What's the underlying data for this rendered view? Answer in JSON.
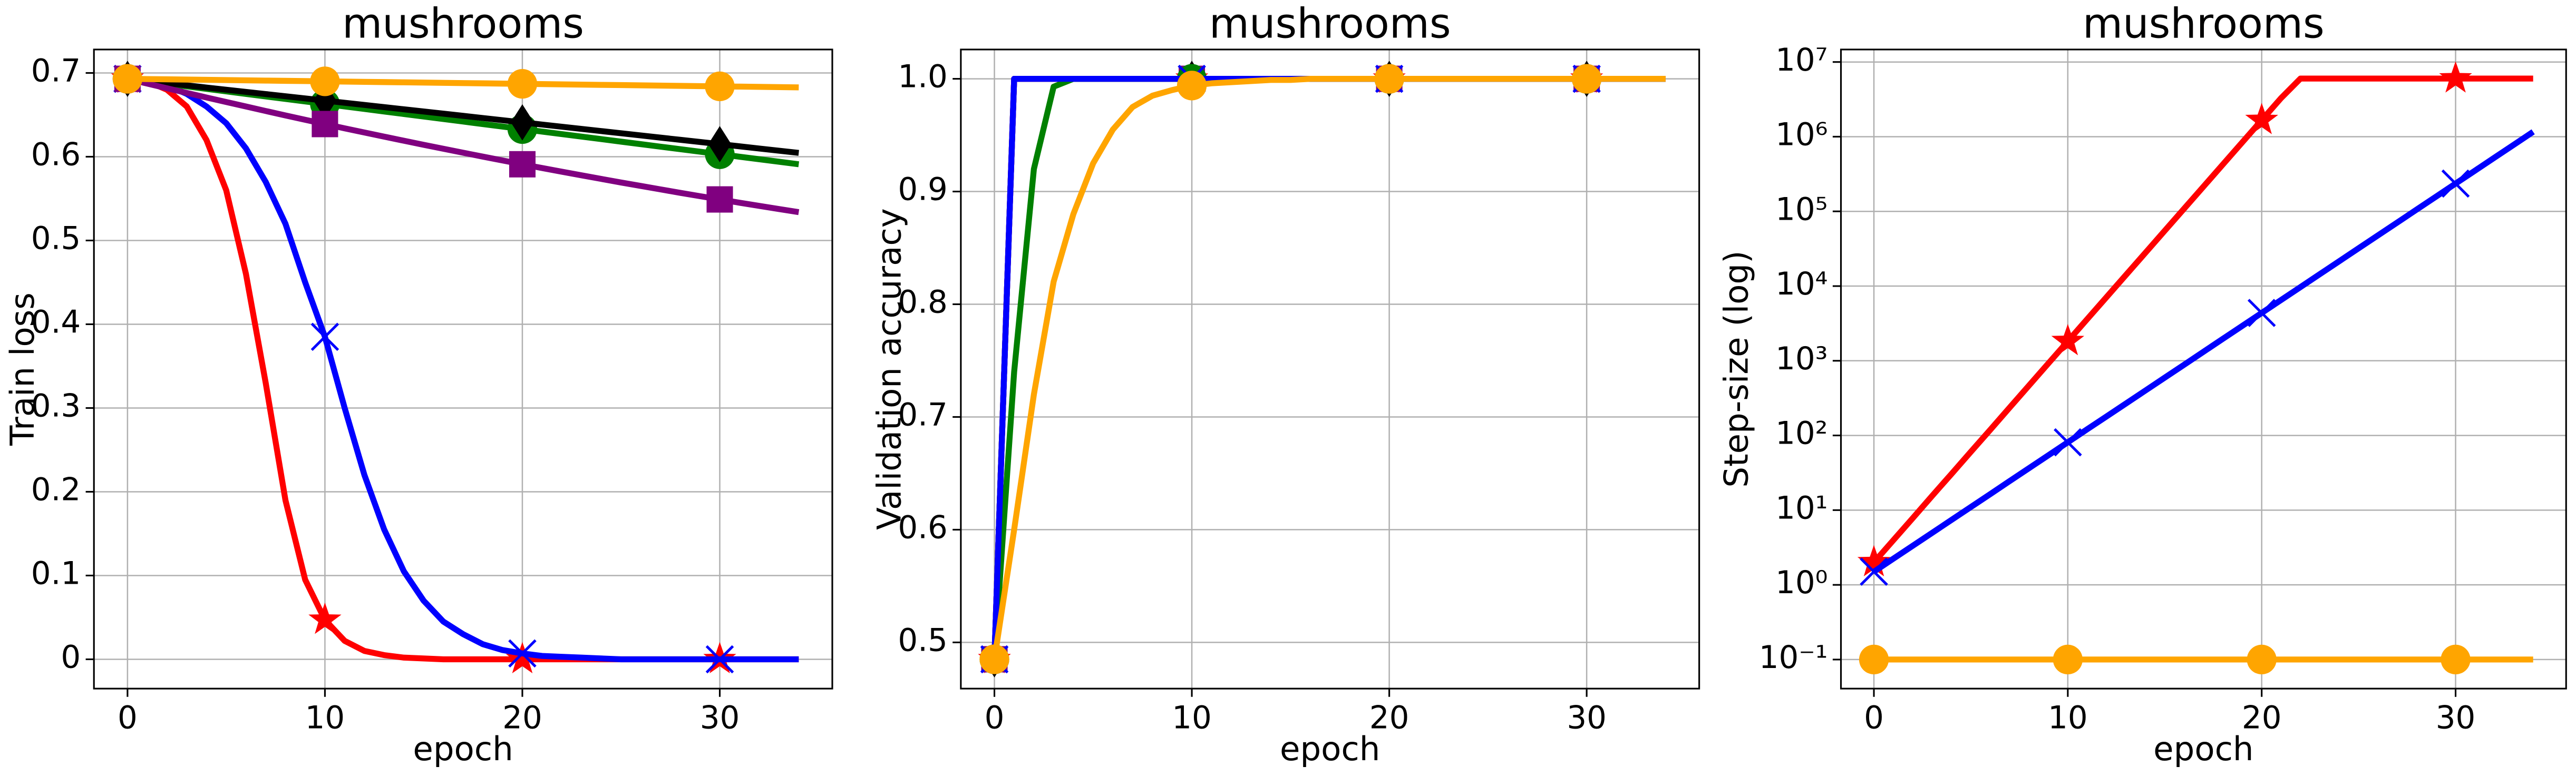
{
  "chart_data": [
    {
      "type": "line",
      "title": "mushrooms",
      "x_label": "epoch",
      "y_label": "Train loss",
      "grid": true,
      "markevery": 10,
      "x": [
        0,
        1,
        2,
        3,
        4,
        5,
        6,
        7,
        8,
        9,
        10,
        11,
        12,
        13,
        14,
        15,
        16,
        17,
        18,
        19,
        20,
        21,
        22,
        23,
        24,
        25,
        26,
        27,
        28,
        29,
        30,
        31,
        32,
        33,
        34
      ],
      "xlim": [
        -1.7,
        35.7
      ],
      "xticks": [
        0,
        10,
        20,
        30
      ],
      "ylim": [
        -0.035,
        0.728
      ],
      "yticks": [
        0.0,
        0.1,
        0.2,
        0.3,
        0.4,
        0.5,
        0.6,
        0.7
      ],
      "series": [
        {
          "color": "#ff0000",
          "marker": "star",
          "values": [
            0.693,
            0.69,
            0.68,
            0.66,
            0.62,
            0.56,
            0.46,
            0.33,
            0.19,
            0.095,
            0.047,
            0.022,
            0.01,
            0.005,
            0.002,
            0.001,
            0,
            0,
            0,
            0,
            0,
            0,
            0,
            0,
            0,
            0,
            0,
            0,
            0,
            0,
            0,
            0,
            0,
            0,
            0
          ]
        },
        {
          "color": "#0000ff",
          "marker": "x",
          "values": [
            0.693,
            0.69,
            0.685,
            0.675,
            0.66,
            0.64,
            0.61,
            0.57,
            0.52,
            0.45,
            0.385,
            0.3,
            0.22,
            0.155,
            0.105,
            0.07,
            0.045,
            0.03,
            0.018,
            0.011,
            0.007,
            0.004,
            0.003,
            0.002,
            0.001,
            0,
            0,
            0,
            0,
            0,
            0,
            0,
            0,
            0,
            0
          ]
        },
        {
          "color": "#008000",
          "marker": "circle",
          "values": [
            0.693,
            0.69,
            0.687,
            0.684,
            0.681,
            0.678,
            0.675,
            0.672,
            0.669,
            0.666,
            0.663,
            0.66,
            0.657,
            0.654,
            0.651,
            0.648,
            0.645,
            0.642,
            0.639,
            0.636,
            0.633,
            0.63,
            0.627,
            0.624,
            0.621,
            0.618,
            0.615,
            0.612,
            0.609,
            0.606,
            0.603,
            0.6,
            0.597,
            0.594,
            0.591
          ]
        },
        {
          "color": "#000000",
          "marker": "diamond",
          "values": [
            0.693,
            0.6904,
            0.6878,
            0.6852,
            0.6826,
            0.68,
            0.6774,
            0.6748,
            0.6722,
            0.6696,
            0.667,
            0.6644,
            0.6618,
            0.6592,
            0.6566,
            0.654,
            0.6514,
            0.6488,
            0.6462,
            0.6436,
            0.641,
            0.6384,
            0.6358,
            0.6332,
            0.6306,
            0.628,
            0.6254,
            0.6228,
            0.6202,
            0.6176,
            0.615,
            0.6124,
            0.6098,
            0.6072,
            0.6046
          ]
        },
        {
          "color": "#800080",
          "marker": "square",
          "values": [
            0.693,
            0.6873,
            0.6817,
            0.6762,
            0.6707,
            0.6653,
            0.66,
            0.6546,
            0.6493,
            0.6441,
            0.639,
            0.6339,
            0.6289,
            0.624,
            0.6191,
            0.6142,
            0.6095,
            0.6048,
            0.6001,
            0.5955,
            0.591,
            0.5865,
            0.5821,
            0.5778,
            0.5735,
            0.5692,
            0.5651,
            0.561,
            0.5569,
            0.5529,
            0.549,
            0.5451,
            0.5413,
            0.5375,
            0.5338
          ]
        },
        {
          "color": "#ffa500",
          "marker": "circle",
          "values": [
            0.693,
            0.6927,
            0.6924,
            0.6921,
            0.6918,
            0.6915,
            0.6912,
            0.6909,
            0.6906,
            0.6903,
            0.69,
            0.6897,
            0.6894,
            0.6891,
            0.6888,
            0.6885,
            0.6882,
            0.6879,
            0.6876,
            0.6873,
            0.687,
            0.6867,
            0.6864,
            0.6861,
            0.6858,
            0.6855,
            0.6852,
            0.6849,
            0.6846,
            0.6843,
            0.684,
            0.6837,
            0.6834,
            0.6831,
            0.6828
          ]
        }
      ]
    },
    {
      "type": "line",
      "title": "mushrooms",
      "x_label": "epoch",
      "y_label": "Validation accuracy",
      "grid": true,
      "markevery": 10,
      "x": [
        0,
        1,
        2,
        3,
        4,
        5,
        6,
        7,
        8,
        9,
        10,
        11,
        12,
        13,
        14,
        15,
        16,
        17,
        18,
        19,
        20,
        21,
        22,
        23,
        24,
        25,
        26,
        27,
        28,
        29,
        30,
        31,
        32,
        33,
        34
      ],
      "xlim": [
        -1.7,
        35.7
      ],
      "xticks": [
        0,
        10,
        20,
        30
      ],
      "ylim": [
        0.459,
        1.026
      ],
      "yticks": [
        0.5,
        0.6,
        0.7,
        0.8,
        0.9,
        {
          "value": 1.0,
          "label": "1.0"
        }
      ],
      "series": [
        {
          "color": "#ff0000",
          "marker": "star",
          "values": [
            0.485,
            1,
            1,
            1,
            1,
            1,
            1,
            1,
            1,
            1,
            1,
            1,
            1,
            1,
            1,
            1,
            1,
            1,
            1,
            1,
            1,
            1,
            1,
            1,
            1,
            1,
            1,
            1,
            1,
            1,
            1,
            1,
            1,
            1,
            1
          ]
        },
        {
          "color": "#000000",
          "marker": "diamond",
          "values": [
            0.485,
            1,
            1,
            1,
            1,
            1,
            1,
            1,
            1,
            1,
            1,
            1,
            1,
            1,
            1,
            1,
            1,
            1,
            1,
            1,
            1,
            1,
            1,
            1,
            1,
            1,
            1,
            1,
            1,
            1,
            1,
            1,
            1,
            1,
            1
          ]
        },
        {
          "color": "#800080",
          "marker": "square",
          "values": [
            0.485,
            1,
            1,
            1,
            1,
            1,
            1,
            1,
            1,
            1,
            1,
            1,
            1,
            1,
            1,
            1,
            1,
            1,
            1,
            1,
            1,
            1,
            1,
            1,
            1,
            1,
            1,
            1,
            1,
            1,
            1,
            1,
            1,
            1,
            1
          ]
        },
        {
          "color": "#008000",
          "marker": "circle",
          "values": [
            0.485,
            0.74,
            0.92,
            0.993,
            1,
            1,
            1,
            1,
            1,
            1,
            1,
            1,
            1,
            1,
            1,
            1,
            1,
            1,
            1,
            1,
            1,
            1,
            1,
            1,
            1,
            1,
            1,
            1,
            1,
            1,
            1,
            1,
            1,
            1,
            1
          ]
        },
        {
          "color": "#0000ff",
          "marker": "x",
          "values": [
            0.485,
            1,
            1,
            1,
            1,
            1,
            1,
            1,
            1,
            1,
            1,
            1,
            1,
            1,
            1,
            1,
            1,
            1,
            1,
            1,
            1,
            1,
            1,
            1,
            1,
            1,
            1,
            1,
            1,
            1,
            1,
            1,
            1,
            1,
            1
          ]
        },
        {
          "color": "#ffa500",
          "marker": "circle",
          "values": [
            0.485,
            0.6,
            0.72,
            0.82,
            0.88,
            0.925,
            0.955,
            0.975,
            0.985,
            0.99,
            0.994,
            0.996,
            0.997,
            0.998,
            0.999,
            0.999,
            1,
            1,
            1,
            1,
            1,
            1,
            1,
            1,
            1,
            1,
            1,
            1,
            1,
            1,
            1,
            1,
            1,
            1,
            1
          ]
        }
      ]
    },
    {
      "type": "line",
      "title": "mushrooms",
      "x_label": "epoch",
      "y_label": "Step-size (log)",
      "grid": true,
      "markevery": 10,
      "yscale": "log",
      "x": [
        0,
        1,
        2,
        3,
        4,
        5,
        6,
        7,
        8,
        9,
        10,
        11,
        12,
        13,
        14,
        15,
        16,
        17,
        18,
        19,
        20,
        21,
        22,
        23,
        24,
        25,
        26,
        27,
        28,
        29,
        30,
        31,
        32,
        33,
        34
      ],
      "xlim": [
        -1.7,
        35.7
      ],
      "xticks": [
        0,
        10,
        20,
        30
      ],
      "ylim": [
        0.0408,
        14700000
      ],
      "yticks": [
        {
          "value": 0.1,
          "label": "10⁻¹"
        },
        {
          "value": 1,
          "label": "10⁰"
        },
        {
          "value": 10,
          "label": "10¹"
        },
        {
          "value": 100,
          "label": "10²"
        },
        {
          "value": 1000,
          "label": "10³"
        },
        {
          "value": 10000,
          "label": "10⁴"
        },
        {
          "value": 100000,
          "label": "10⁵"
        },
        {
          "value": 1000000,
          "label": "10⁶"
        },
        {
          "value": 10000000,
          "label": "10⁷"
        }
      ],
      "series": [
        {
          "color": "#ff0000",
          "marker": "star",
          "values": [
            2,
            3.95,
            7.8,
            15.5,
            30.5,
            60.4,
            119,
            236,
            467,
            923,
            1824,
            3606,
            7129,
            14093,
            27861,
            55081,
            108893,
            215278,
            425598,
            841395,
            1663412,
            3288530,
            6000000,
            6000000,
            6000000,
            6000000,
            6000000,
            6000000,
            6000000,
            6000000,
            6000000,
            6000000,
            6000000,
            6000000,
            6000000
          ]
        },
        {
          "color": "#0000ff",
          "marker": "x",
          "values": [
            1.5,
            2.235,
            3.33,
            4.96,
            7.39,
            11,
            16.4,
            24.5,
            36.5,
            54.3,
            81,
            121,
            180,
            268,
            399,
            595,
            886,
            1321,
            1968,
            2932,
            4369,
            6510,
            9700,
            14453,
            21535,
            32087,
            47810,
            71236,
            106142,
            158152,
            235646,
            351113,
            523158,
            779505,
            1161462
          ]
        },
        {
          "color": "#ffa500",
          "marker": "circle",
          "values": [
            0.1,
            0.1,
            0.1,
            0.1,
            0.1,
            0.1,
            0.1,
            0.1,
            0.1,
            0.1,
            0.1,
            0.1,
            0.1,
            0.1,
            0.1,
            0.1,
            0.1,
            0.1,
            0.1,
            0.1,
            0.1,
            0.1,
            0.1,
            0.1,
            0.1,
            0.1,
            0.1,
            0.1,
            0.1,
            0.1,
            0.1,
            0.1,
            0.1,
            0.1,
            0.1
          ]
        }
      ]
    }
  ]
}
